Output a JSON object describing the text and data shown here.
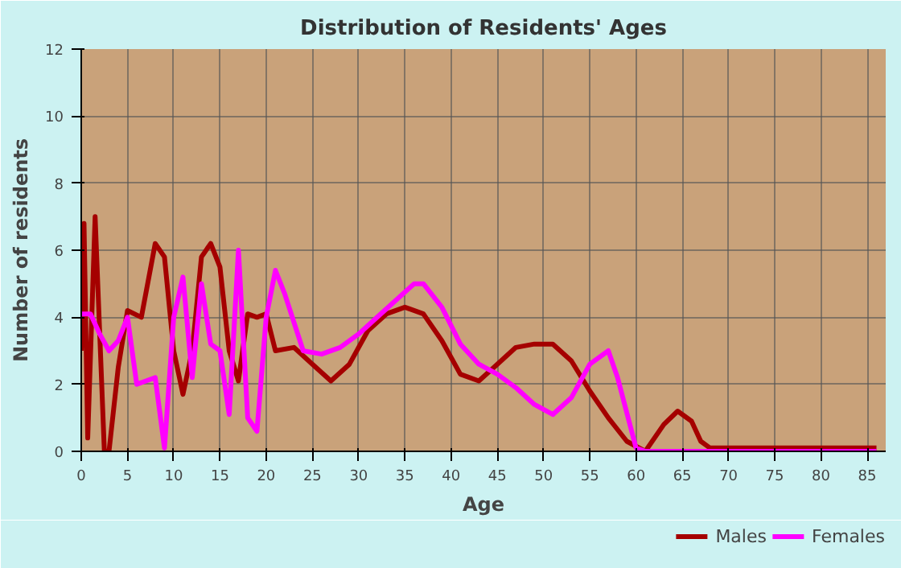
{
  "chart_data": {
    "type": "line",
    "title": "Distribution of Residents' Ages",
    "xlabel": "Age",
    "ylabel": "Number of residents",
    "xlim": [
      0,
      87
    ],
    "ylim": [
      0,
      12
    ],
    "xticks": [
      0,
      5,
      10,
      15,
      20,
      25,
      30,
      35,
      40,
      45,
      50,
      55,
      60,
      65,
      70,
      75,
      80,
      85
    ],
    "yticks": [
      0,
      2,
      4,
      6,
      8,
      10,
      12
    ],
    "grid": true,
    "legend": "bottom",
    "line_style": "solid",
    "marker": "none",
    "series": [
      {
        "name": "Males",
        "color": "#a50000",
        "x": [
          0,
          0.3,
          0.7,
          1.5,
          2.5,
          3,
          4,
          5,
          6.5,
          8,
          9,
          10,
          11,
          12,
          13,
          14,
          15,
          16,
          17,
          18,
          19,
          20,
          21,
          23,
          25,
          27,
          29,
          31,
          33,
          35,
          37,
          39,
          41,
          43,
          45,
          47,
          49,
          51,
          53,
          55,
          57,
          59,
          61,
          63,
          64.5,
          66,
          67,
          68,
          70,
          75,
          80,
          86
        ],
        "values": [
          3,
          6.8,
          0.4,
          7,
          0,
          0,
          2.5,
          4.2,
          4,
          6.2,
          5.8,
          3,
          1.7,
          3,
          5.8,
          6.2,
          5.5,
          3,
          2.1,
          4.1,
          4,
          4.1,
          3,
          3.1,
          2.6,
          2.1,
          2.6,
          3.6,
          4.1,
          4.3,
          4.1,
          3.3,
          2.3,
          2.1,
          2.6,
          3.1,
          3.2,
          3.2,
          2.7,
          1.8,
          1,
          0.3,
          0,
          0.8,
          1.2,
          0.9,
          0.3,
          0.1,
          0.1,
          0.1,
          0.1,
          0.1
        ]
      },
      {
        "name": "Females",
        "color": "#ff00ff",
        "x": [
          0,
          1,
          2,
          3,
          4,
          5,
          6,
          7,
          8,
          9,
          10,
          11,
          12,
          13,
          14,
          15,
          16,
          17,
          18,
          19,
          20,
          21,
          22,
          24,
          26,
          28,
          30,
          32,
          34,
          36,
          37,
          39,
          41,
          43,
          45,
          47,
          49,
          51,
          53,
          55,
          57,
          58,
          60,
          61,
          65,
          70,
          75,
          86
        ],
        "values": [
          4.1,
          4.1,
          3.5,
          3,
          3.3,
          4,
          2,
          2.1,
          2.2,
          0.1,
          4,
          5.2,
          2.2,
          5,
          3.2,
          3,
          1.1,
          6,
          1,
          0.6,
          4,
          5.4,
          4.7,
          3,
          2.9,
          3.1,
          3.5,
          4,
          4.5,
          5,
          5,
          4.3,
          3.2,
          2.6,
          2.3,
          1.9,
          1.4,
          1.1,
          1.6,
          2.6,
          3,
          2.2,
          0.1,
          0,
          0,
          0,
          0,
          0
        ]
      }
    ]
  }
}
